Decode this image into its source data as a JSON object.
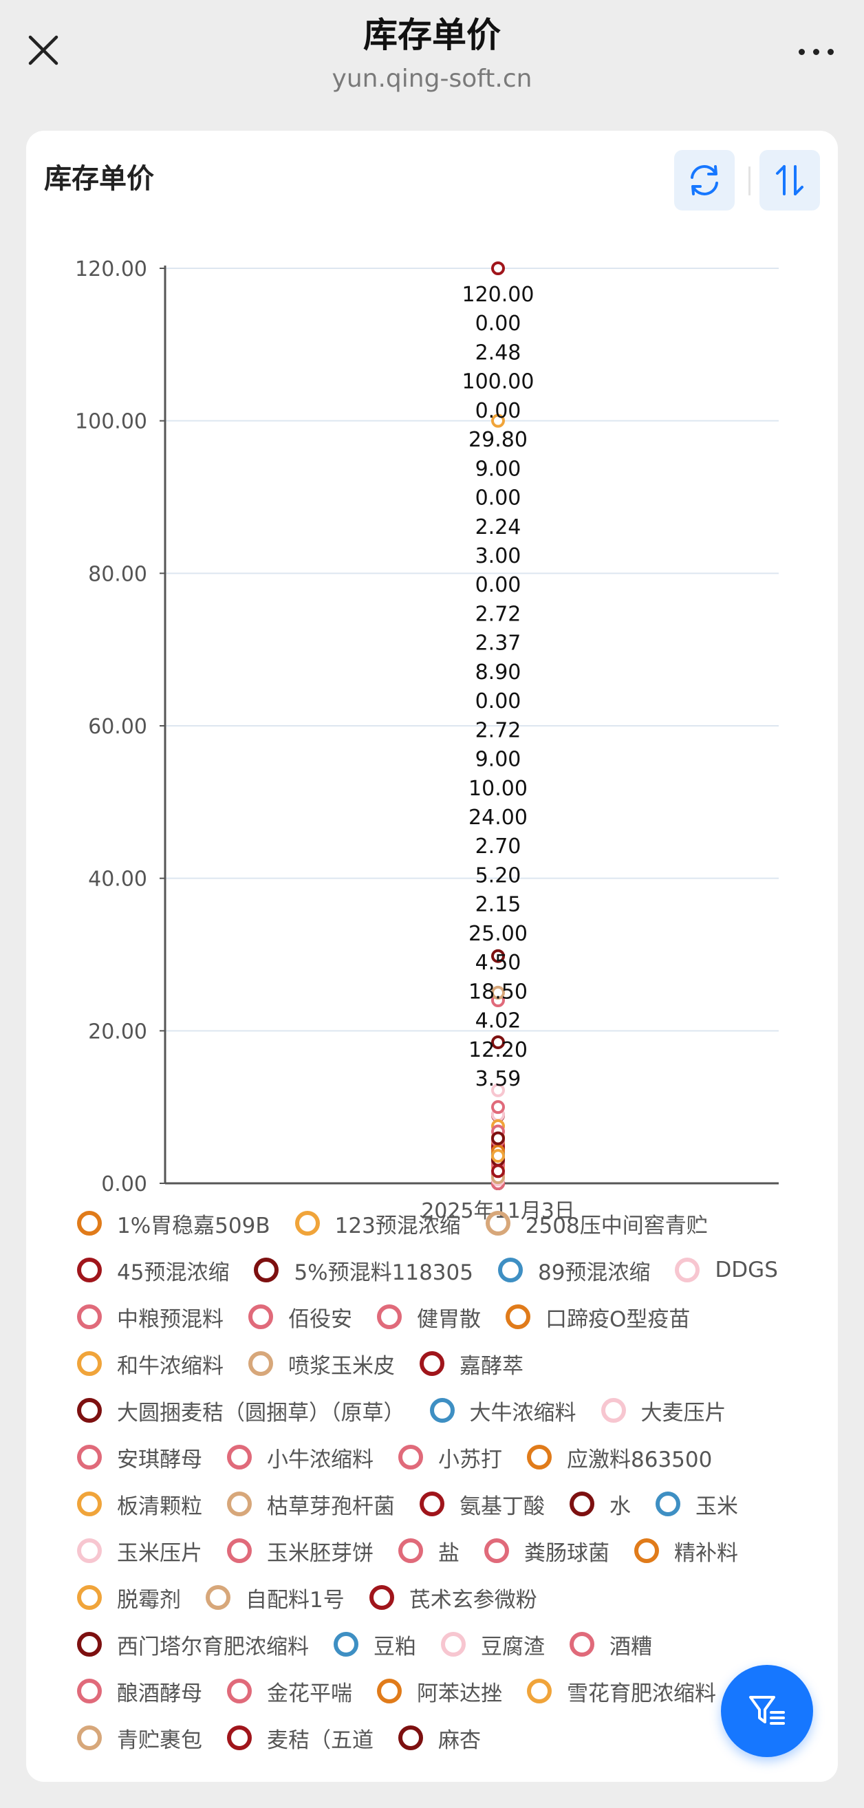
{
  "header": {
    "title": "库存单价",
    "subtitle": "yun.qing-soft.cn",
    "close_icon": "close-icon",
    "more_icon": "more-icon"
  },
  "card": {
    "title": "库存单价",
    "refresh_icon": "refresh-icon",
    "sort_icon": "sort-icon"
  },
  "filter_icon": "filter-icon",
  "colors": {
    "orange": "#e07b1a",
    "light_orange": "#f0a43a",
    "tan": "#d7a77a",
    "dark_red": "#a0151b",
    "maroon": "#7d1010",
    "blue": "#3e8fc3",
    "pink_light": "#f7c6d0",
    "pink": "#e06a7a",
    "accent": "#1677ff"
  },
  "chart_data": {
    "type": "scatter",
    "title": "",
    "xlabel": "",
    "ylabel": "",
    "x": [
      "2025年11月3日"
    ],
    "ylim": [
      0,
      120
    ],
    "y_ticks": [
      "0.00",
      "20.00",
      "40.00",
      "60.00",
      "80.00",
      "100.00",
      "120.00"
    ],
    "grid": true,
    "legend_position": "bottom",
    "data_labels": [
      "120.00",
      "0.00",
      "2.48",
      "100.00",
      "0.00",
      "29.80",
      "9.00",
      "0.00",
      "2.24",
      "3.00",
      "0.00",
      "2.72",
      "2.37",
      "8.90",
      "0.00",
      "2.72",
      "9.00",
      "10.00",
      "24.00",
      "2.70",
      "5.20",
      "2.15",
      "25.00",
      "4.50",
      "18.50",
      "4.02",
      "12.20",
      "3.59"
    ],
    "series": [
      {
        "name": "1%胃稳嘉509B",
        "color": "orange",
        "values": [
          2.7
        ]
      },
      {
        "name": "123预混浓缩",
        "color": "light_orange",
        "values": [
          100.0
        ]
      },
      {
        "name": "2508压中间窖青贮",
        "color": "tan",
        "values": [
          0.0
        ]
      },
      {
        "name": "45预混浓缩",
        "color": "dark_red",
        "values": [
          120.0
        ]
      },
      {
        "name": "5%预混料118305",
        "color": "maroon",
        "values": [
          29.8
        ]
      },
      {
        "name": "89预混浓缩",
        "color": "blue",
        "values": [
          0.0
        ]
      },
      {
        "name": "DDGS",
        "color": "pink_light",
        "values": [
          2.24
        ]
      },
      {
        "name": "中粮预混料",
        "color": "pink",
        "values": [
          9.0
        ]
      },
      {
        "name": "佰役安",
        "color": "pink",
        "values": [
          0.0
        ]
      },
      {
        "name": "健胃散",
        "color": "pink",
        "values": [
          3.0
        ]
      },
      {
        "name": "口蹄疫O型疫苗",
        "color": "orange",
        "values": [
          0.0
        ]
      },
      {
        "name": "和牛浓缩料",
        "color": "light_orange",
        "values": [
          2.72
        ]
      },
      {
        "name": "喷浆玉米皮",
        "color": "tan",
        "values": [
          2.37
        ]
      },
      {
        "name": "嘉酵萃",
        "color": "dark_red",
        "values": [
          8.9
        ]
      },
      {
        "name": "大圆捆麦秸（圆捆草）（原草）",
        "color": "maroon",
        "values": [
          0.0
        ]
      },
      {
        "name": "大牛浓缩料",
        "color": "blue",
        "values": [
          2.72
        ]
      },
      {
        "name": "大麦压片",
        "color": "pink_light",
        "values": [
          9.0
        ]
      },
      {
        "name": "安琪酵母",
        "color": "pink",
        "values": [
          10.0
        ]
      },
      {
        "name": "小牛浓缩料",
        "color": "pink",
        "values": [
          24.0
        ]
      },
      {
        "name": "小苏打",
        "color": "pink",
        "values": [
          2.7
        ]
      },
      {
        "name": "应激料863500",
        "color": "orange",
        "values": [
          5.2
        ]
      },
      {
        "name": "板清颗粒",
        "color": "light_orange",
        "values": [
          2.15
        ]
      },
      {
        "name": "枯草芽孢杆菌",
        "color": "tan",
        "values": [
          25.0
        ]
      },
      {
        "name": "氨基丁酸",
        "color": "dark_red",
        "values": [
          4.5
        ]
      },
      {
        "name": "水",
        "color": "maroon",
        "values": [
          18.5
        ]
      },
      {
        "name": "玉米",
        "color": "blue",
        "values": [
          4.02
        ]
      },
      {
        "name": "玉米压片",
        "color": "pink_light",
        "values": [
          12.2
        ]
      },
      {
        "name": "玉米胚芽饼",
        "color": "pink",
        "values": [
          3.59
        ]
      },
      {
        "name": "盐",
        "color": "pink",
        "values": [
          2.48
        ]
      },
      {
        "name": "粪肠球菌",
        "color": "pink",
        "values": [
          0.0
        ]
      },
      {
        "name": "精补料",
        "color": "orange",
        "values": [
          6.0
        ]
      },
      {
        "name": "脱霉剂",
        "color": "light_orange",
        "values": [
          7.5
        ]
      },
      {
        "name": "自配料1号",
        "color": "tan",
        "values": [
          3.3
        ]
      },
      {
        "name": "芪术玄参微粉",
        "color": "dark_red",
        "values": [
          4.8
        ]
      },
      {
        "name": "西门塔尔育肥浓缩料",
        "color": "maroon",
        "values": [
          3.1
        ]
      },
      {
        "name": "豆粕",
        "color": "blue",
        "values": [
          3.8
        ]
      },
      {
        "name": "豆腐渣",
        "color": "pink_light",
        "values": [
          0.5
        ]
      },
      {
        "name": "酒糟",
        "color": "pink",
        "values": [
          1.2
        ]
      },
      {
        "name": "酿酒酵母",
        "color": "pink",
        "values": [
          5.6
        ]
      },
      {
        "name": "金花平喘",
        "color": "pink",
        "values": [
          6.8
        ]
      },
      {
        "name": "阿苯达挫",
        "color": "orange",
        "values": [
          4.2
        ]
      },
      {
        "name": "雪花育肥浓缩料",
        "color": "light_orange",
        "values": [
          3.6
        ]
      },
      {
        "name": "青贮裹包",
        "color": "tan",
        "values": [
          0.8
        ]
      },
      {
        "name": "麦秸（五道",
        "color": "dark_red",
        "values": [
          1.6
        ]
      },
      {
        "name": "麻杏",
        "color": "maroon",
        "values": [
          5.9
        ]
      }
    ]
  }
}
